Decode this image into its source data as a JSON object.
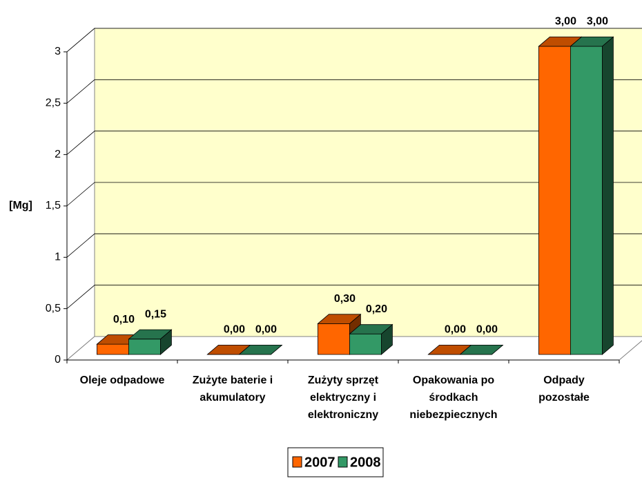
{
  "chart_data": {
    "type": "bar3d",
    "y_label": "[Mg]",
    "categories": [
      [
        "Oleje odpadowe"
      ],
      [
        "Zużyte baterie i",
        "akumulatory"
      ],
      [
        "Zużyty sprzęt",
        "elektryczny i",
        "elektroniczny"
      ],
      [
        "Opakowania po",
        "środkach",
        "niebezpiecznych"
      ],
      [
        "Odpady",
        "pozostałe"
      ]
    ],
    "series": [
      {
        "name": "2007",
        "color": "#ff6600",
        "values": [
          0.1,
          0,
          0.3,
          0,
          3
        ],
        "value_labels": [
          "0,10",
          "0,00",
          "0,30",
          "0,00",
          "3,00"
        ]
      },
      {
        "name": "2008",
        "color": "#339966",
        "values": [
          0.15,
          0,
          0.2,
          0,
          3
        ],
        "value_labels": [
          "0,15",
          "0,00",
          "0,20",
          "0,00",
          "3,00"
        ]
      }
    ],
    "ylim": [
      0,
      3
    ],
    "yticks": [
      0,
      {
        "value": 0.5,
        "label": "0,5"
      },
      1,
      {
        "value": 1.5,
        "label": "1,5"
      },
      2,
      {
        "value": 2.5,
        "label": "2,5"
      },
      3
    ],
    "grid": true,
    "wall_color": "#ffffcc",
    "legend": "bottom"
  }
}
